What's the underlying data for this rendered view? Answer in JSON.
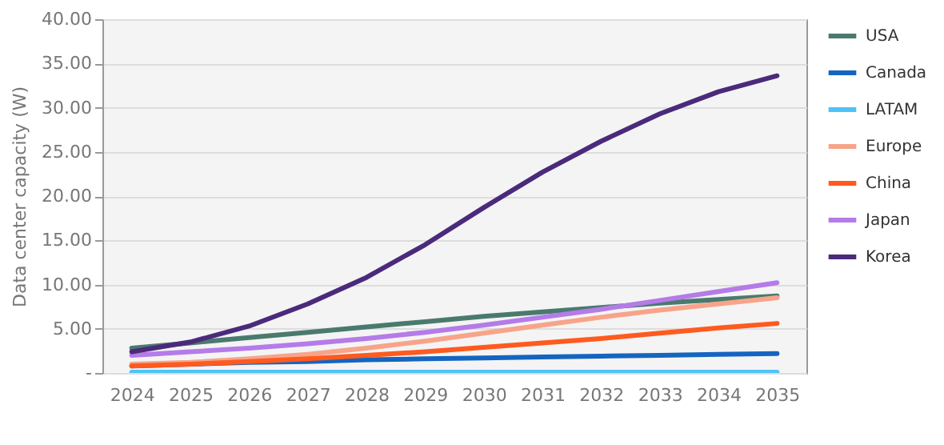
{
  "chart_data": {
    "type": "line",
    "ylabel": "Data center capacity (W)",
    "categories": [
      "2024",
      "2025",
      "2026",
      "2027",
      "2028",
      "2029",
      "2030",
      "2031",
      "2032",
      "2033",
      "2034",
      "2035"
    ],
    "series": [
      {
        "name": "USA",
        "color": "#4a7a6e",
        "values": [
          2.8,
          3.4,
          4.0,
          4.6,
          5.2,
          5.8,
          6.4,
          6.9,
          7.4,
          7.9,
          8.3,
          8.7
        ]
      },
      {
        "name": "Canada",
        "color": "#1565c0",
        "values": [
          0.8,
          1.0,
          1.2,
          1.3,
          1.5,
          1.6,
          1.7,
          1.8,
          1.9,
          2.0,
          2.1,
          2.2
        ]
      },
      {
        "name": "LATAM",
        "color": "#4fc3f7",
        "values": [
          0.1,
          0.1,
          0.1,
          0.1,
          0.1,
          0.1,
          0.1,
          0.1,
          0.1,
          0.1,
          0.1,
          0.1
        ]
      },
      {
        "name": "Europe",
        "color": "#f7a48a",
        "values": [
          1.0,
          1.2,
          1.6,
          2.1,
          2.8,
          3.6,
          4.5,
          5.4,
          6.3,
          7.1,
          7.8,
          8.5
        ]
      },
      {
        "name": "China",
        "color": "#ff5a1f",
        "values": [
          0.8,
          1.0,
          1.3,
          1.6,
          2.0,
          2.4,
          2.9,
          3.4,
          3.9,
          4.5,
          5.1,
          5.6
        ]
      },
      {
        "name": "Japan",
        "color": "#b57be8",
        "values": [
          2.0,
          2.4,
          2.8,
          3.3,
          3.9,
          4.6,
          5.4,
          6.3,
          7.2,
          8.2,
          9.2,
          10.2
        ]
      },
      {
        "name": "Korea",
        "color": "#4b2a7b",
        "values": [
          2.4,
          3.5,
          5.3,
          7.8,
          10.8,
          14.5,
          18.7,
          22.7,
          26.2,
          29.3,
          31.8,
          33.6
        ]
      }
    ],
    "ylim": [
      0,
      40
    ],
    "yticks": [
      {
        "value": 0,
        "label": "-"
      },
      {
        "value": 5,
        "label": "5.00"
      },
      {
        "value": 10,
        "label": "10.00"
      },
      {
        "value": 15,
        "label": "15.00"
      },
      {
        "value": 20,
        "label": "20.00"
      },
      {
        "value": 25,
        "label": "25.00"
      },
      {
        "value": 30,
        "label": "30.00"
      },
      {
        "value": 35,
        "label": "35.00"
      },
      {
        "value": 40,
        "label": "40.00"
      }
    ],
    "grid": "y",
    "legend": "top right",
    "marker": "none",
    "line_style": "solid"
  }
}
